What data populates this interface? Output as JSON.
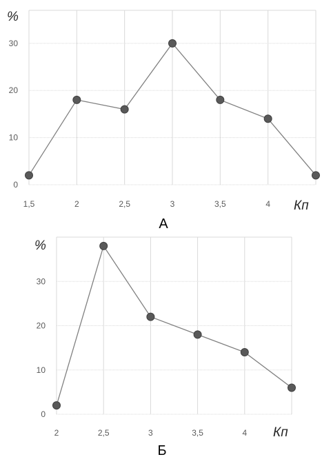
{
  "chart_data": [
    {
      "type": "line",
      "caption": "А",
      "ylabel": "%",
      "xlabel": "Кп",
      "x": [
        1.5,
        2,
        2.5,
        3,
        3.5,
        4,
        4.5
      ],
      "x_tick_labels": [
        "1,5",
        "2",
        "2,5",
        "3",
        "3,5",
        "4"
      ],
      "y": [
        2,
        18,
        16,
        30,
        18,
        14,
        2
      ],
      "y_ticks": [
        0,
        10,
        20,
        30
      ],
      "ylim": [
        0,
        37
      ],
      "grid": true,
      "marker_color": "#595959",
      "line_color": "#808080"
    },
    {
      "type": "line",
      "caption": "Б",
      "ylabel": "%",
      "xlabel": "Кп",
      "x": [
        2,
        2.5,
        3,
        3.5,
        4,
        4.5
      ],
      "x_tick_labels": [
        "2",
        "2,5",
        "3",
        "3,5",
        "4"
      ],
      "y": [
        2,
        38,
        22,
        18,
        14,
        6
      ],
      "y_ticks": [
        0,
        10,
        20,
        30
      ],
      "ylim": [
        0,
        40
      ],
      "grid": true,
      "marker_color": "#595959",
      "line_color": "#808080"
    }
  ]
}
